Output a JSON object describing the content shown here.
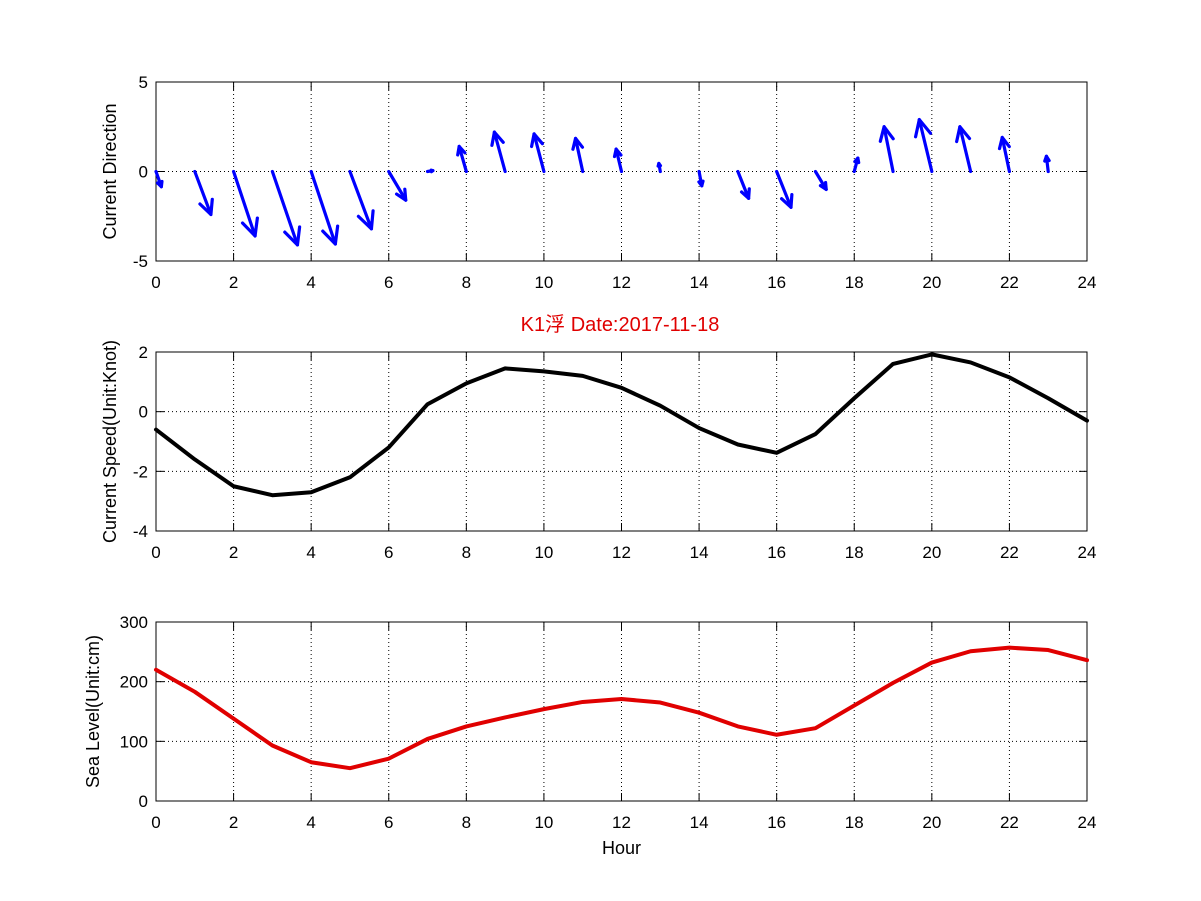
{
  "colors": {
    "arrows": "#0000ff",
    "speed_line": "#000000",
    "sea_level_line": "#e00000",
    "title": "#e00000",
    "axes": "#000000",
    "grid": "#000000",
    "background": "#ffffff"
  },
  "figure": {
    "title": "K1浮    Date:2017-11-18"
  },
  "chart_data": [
    {
      "type": "quiver",
      "name": "current-direction",
      "xlabel": "",
      "ylabel": "Current Direction",
      "xlim": [
        0,
        24
      ],
      "ylim": [
        -5,
        5
      ],
      "xticks": [
        0,
        2,
        4,
        6,
        8,
        10,
        12,
        14,
        16,
        18,
        20,
        22,
        24
      ],
      "yticks": [
        -5,
        0,
        5
      ],
      "grid": true,
      "arrows": [
        {
          "x": 0,
          "y": 0,
          "u": 0.3,
          "v": -0.85
        },
        {
          "x": 1,
          "y": 0,
          "u": 0.9,
          "v": -2.4
        },
        {
          "x": 2,
          "y": 0,
          "u": 1.2,
          "v": -3.6
        },
        {
          "x": 3,
          "y": 0,
          "u": 1.4,
          "v": -4.1
        },
        {
          "x": 4,
          "y": 0,
          "u": 1.35,
          "v": -4.05
        },
        {
          "x": 5,
          "y": 0,
          "u": 1.2,
          "v": -3.2
        },
        {
          "x": 6,
          "y": 0,
          "u": 0.95,
          "v": -1.6
        },
        {
          "x": 7,
          "y": 0,
          "u": 0.3,
          "v": 0.05
        },
        {
          "x": 8,
          "y": 0,
          "u": -0.4,
          "v": 1.4
        },
        {
          "x": 9,
          "y": 0,
          "u": -0.6,
          "v": 2.2
        },
        {
          "x": 10,
          "y": 0,
          "u": -0.55,
          "v": 2.1
        },
        {
          "x": 11,
          "y": 0,
          "u": -0.4,
          "v": 1.85
        },
        {
          "x": 12,
          "y": 0,
          "u": -0.3,
          "v": 1.25
        },
        {
          "x": 13,
          "y": 0,
          "u": -0.08,
          "v": 0.45
        },
        {
          "x": 14,
          "y": 0,
          "u": 0.15,
          "v": -0.8
        },
        {
          "x": 15,
          "y": 0,
          "u": 0.6,
          "v": -1.5
        },
        {
          "x": 16,
          "y": 0,
          "u": 0.8,
          "v": -2.0
        },
        {
          "x": 17,
          "y": 0,
          "u": 0.6,
          "v": -1.0
        },
        {
          "x": 18,
          "y": 0,
          "u": 0.2,
          "v": 0.75
        },
        {
          "x": 19,
          "y": 0,
          "u": -0.5,
          "v": 2.5
        },
        {
          "x": 20,
          "y": 0,
          "u": -0.7,
          "v": 2.9
        },
        {
          "x": 21,
          "y": 0,
          "u": -0.6,
          "v": 2.5
        },
        {
          "x": 22,
          "y": 0,
          "u": -0.4,
          "v": 1.9
        },
        {
          "x": 23,
          "y": 0,
          "u": -0.1,
          "v": 0.85
        }
      ]
    },
    {
      "type": "line",
      "name": "current-speed",
      "xlabel": "",
      "ylabel": "Current Speed(Unit:Knot)",
      "xlim": [
        0,
        24
      ],
      "ylim": [
        -4,
        2
      ],
      "xticks": [
        0,
        2,
        4,
        6,
        8,
        10,
        12,
        14,
        16,
        18,
        20,
        22,
        24
      ],
      "yticks": [
        -4,
        -2,
        0,
        2
      ],
      "grid": true,
      "x": [
        0,
        1,
        2,
        3,
        4,
        5,
        6,
        7,
        8,
        9,
        10,
        11,
        12,
        13,
        14,
        15,
        16,
        17,
        18,
        19,
        20,
        21,
        22,
        23,
        24
      ],
      "y": [
        -0.6,
        -1.6,
        -2.5,
        -2.8,
        -2.7,
        -2.2,
        -1.2,
        0.25,
        0.95,
        1.45,
        1.35,
        1.2,
        0.8,
        0.2,
        -0.55,
        -1.1,
        -1.38,
        -0.75,
        0.45,
        1.6,
        1.92,
        1.65,
        1.15,
        0.45,
        -0.3
      ]
    },
    {
      "type": "line",
      "name": "sea-level",
      "xlabel": "Hour",
      "ylabel": "Sea Level(Unit:cm)",
      "xlim": [
        0,
        24
      ],
      "ylim": [
        0,
        300
      ],
      "xticks": [
        0,
        2,
        4,
        6,
        8,
        10,
        12,
        14,
        16,
        18,
        20,
        22,
        24
      ],
      "yticks": [
        0,
        100,
        200,
        300
      ],
      "grid": true,
      "x": [
        0,
        1,
        2,
        3,
        4,
        5,
        6,
        7,
        8,
        9,
        10,
        11,
        12,
        13,
        14,
        15,
        16,
        17,
        18,
        19,
        20,
        21,
        22,
        23,
        24
      ],
      "y": [
        220,
        183,
        138,
        93,
        65,
        55,
        71,
        104,
        125,
        140,
        154,
        166,
        171,
        165,
        148,
        125,
        111,
        122,
        160,
        198,
        232,
        251,
        257,
        253,
        236
      ]
    }
  ]
}
